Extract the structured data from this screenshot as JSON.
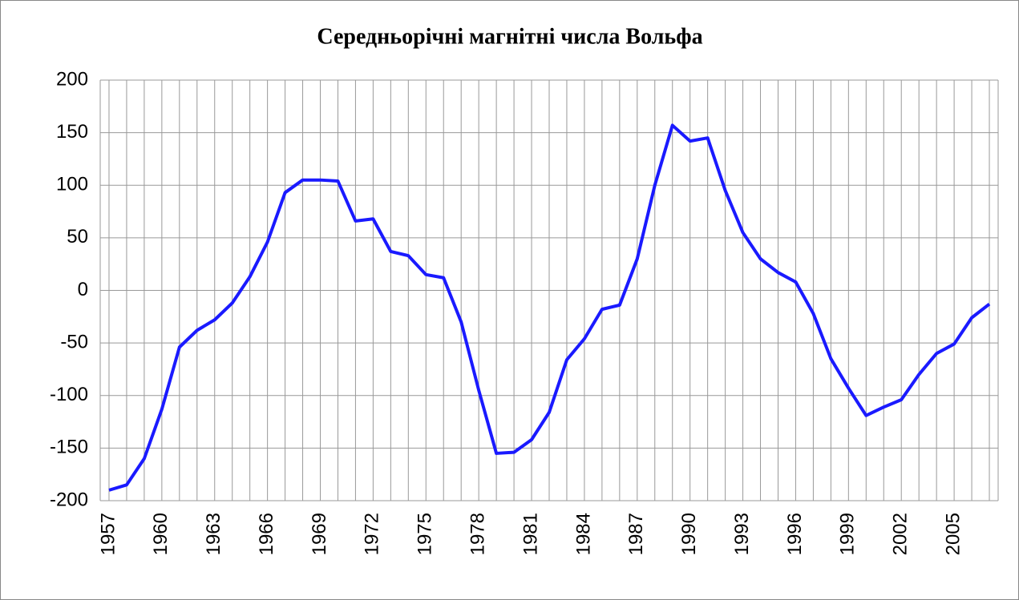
{
  "chart_data": {
    "type": "line",
    "title": "Середньорічні магнітні числа Вольфа",
    "categories": [
      "1957",
      null,
      null,
      "1960",
      null,
      null,
      "1963",
      null,
      null,
      "1966",
      null,
      null,
      "1969",
      null,
      null,
      "1972",
      null,
      null,
      "1975",
      null,
      null,
      "1978",
      null,
      null,
      "1981",
      null,
      null,
      "1984",
      null,
      null,
      "1987",
      null,
      null,
      "1990",
      null,
      null,
      "1993",
      null,
      null,
      "1996",
      null,
      null,
      "1999",
      null,
      null,
      "2002",
      null,
      null,
      "2005",
      null,
      null
    ],
    "values": [
      -190,
      -185,
      -160,
      -113,
      -54,
      -38,
      -28,
      -12,
      13,
      46,
      93,
      105,
      105,
      104,
      66,
      68,
      37,
      33,
      15,
      12,
      -30,
      -95,
      -155,
      -154,
      -142,
      -116,
      -66,
      -46,
      -18,
      -14,
      30,
      100,
      157,
      142,
      145,
      95,
      55,
      30,
      17,
      8,
      -22,
      -65,
      -93,
      -119,
      -111,
      -104,
      -80,
      -60,
      -51,
      -26,
      -13
    ],
    "color": "#1a1aff",
    "ylim": [
      -200,
      200
    ],
    "yticks": [
      -200,
      -150,
      -100,
      -50,
      0,
      50,
      100,
      150,
      200
    ],
    "grid": true
  }
}
